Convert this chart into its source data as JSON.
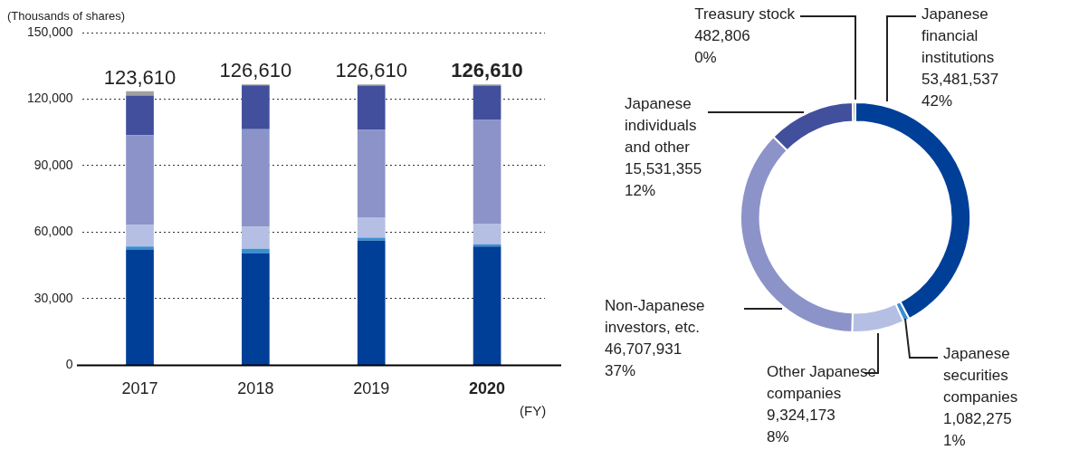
{
  "chart_data": [
    {
      "type": "bar",
      "stacked": true,
      "ylabel": "(Thousands of shares)",
      "xlabel": "(FY)",
      "categories": [
        "2017",
        "2018",
        "2019",
        "2020"
      ],
      "series": [
        {
          "color": "#003f98",
          "values": [
            52200,
            50400,
            56200,
            53500
          ]
        },
        {
          "color": "#3a8fd0",
          "values": [
            1300,
            2100,
            1300,
            1100
          ]
        },
        {
          "color": "#b5bfe3",
          "values": [
            9700,
            9900,
            9200,
            9300
          ]
        },
        {
          "color": "#8c93c9",
          "values": [
            40600,
            44000,
            39400,
            46700
          ]
        },
        {
          "color": "#424f9d",
          "values": [
            17800,
            19800,
            20000,
            15500
          ]
        },
        {
          "color": "#a0a0a0",
          "values": [
            2010,
            410,
            510,
            510
          ]
        }
      ],
      "totals": [
        "123,610",
        "126,610",
        "126,610",
        "126,610"
      ],
      "ylim": [
        0,
        150000
      ],
      "yticks": [
        {
          "value": 0,
          "label": "0"
        },
        {
          "value": 30000,
          "label": "30,000"
        },
        {
          "value": 60000,
          "label": "60,000"
        },
        {
          "value": 90000,
          "label": "90,000"
        },
        {
          "value": 120000,
          "label": "120,000"
        },
        {
          "value": 150000,
          "label": "150,000"
        }
      ],
      "grid": "y",
      "legend": false
    },
    {
      "type": "donut",
      "categories": [
        "Japanese financial institutions",
        "Japanese securities companies",
        "Other Japanese companies",
        "Non-Japanese investors, etc.",
        "Japanese individuals and other",
        "Treasury stock"
      ],
      "values": [
        53481537,
        1082275,
        9324173,
        46707931,
        15531355,
        482806
      ],
      "colors": [
        "#003f98",
        "#3a8fd0",
        "#b5bfe3",
        "#8c93c9",
        "#424f9d",
        "#a0a0a0"
      ],
      "value_labels": [
        "53,481,537\n42%",
        "1,082,275\n1%",
        "9,324,173\n8%",
        "46,707,931\n37%",
        "15,531,355\n12%",
        "482,806\n0%"
      ],
      "legend": false
    }
  ]
}
